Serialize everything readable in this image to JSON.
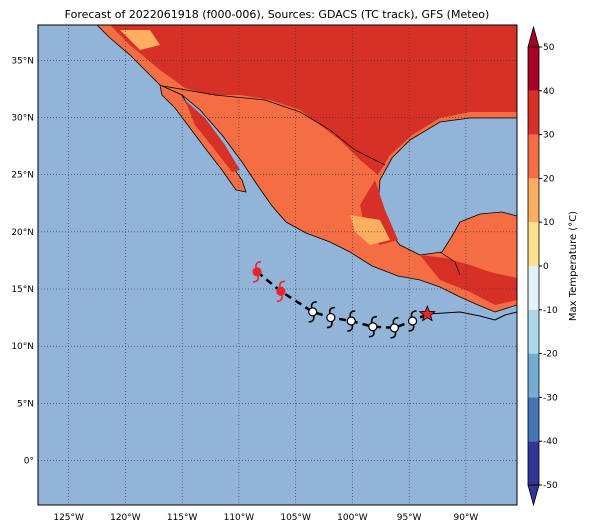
{
  "map": {
    "title": "Forecast of 2022061918 (f000-006), Sources: GDACS (TC track), GFS (Meteo)",
    "xlim": [
      -127.7,
      -85.5
    ],
    "ylim": [
      -3.9,
      38.1
    ],
    "xticks": [
      {
        "value": -125,
        "label": "125°W"
      },
      {
        "value": -120,
        "label": "120°W"
      },
      {
        "value": -115,
        "label": "115°W"
      },
      {
        "value": -110,
        "label": "110°W"
      },
      {
        "value": -105,
        "label": "105°W"
      },
      {
        "value": -100,
        "label": "100°W"
      },
      {
        "value": -95,
        "label": "95°W"
      },
      {
        "value": -90,
        "label": "90°W"
      }
    ],
    "yticks": [
      {
        "value": 0,
        "label": "0°"
      },
      {
        "value": 5,
        "label": "5°N"
      },
      {
        "value": 10,
        "label": "10°N"
      },
      {
        "value": 15,
        "label": "15°N"
      },
      {
        "value": 20,
        "label": "20°N"
      },
      {
        "value": 25,
        "label": "25°N"
      },
      {
        "value": 30,
        "label": "30°N"
      },
      {
        "value": 35,
        "label": "35°N"
      }
    ],
    "track": {
      "lon": [
        -108.4,
        -106.3,
        -103.5,
        -101.9,
        -100.1,
        -98.2,
        -96.3,
        -94.7
      ],
      "lat": [
        16.5,
        14.8,
        13.0,
        12.5,
        12.2,
        11.7,
        11.6,
        12.2
      ],
      "colors": [
        "#e8262a",
        "#e8262a",
        "#ffffff",
        "#ffffff",
        "#ffffff",
        "#ffffff",
        "#ffffff",
        "#ffffff"
      ]
    },
    "star": {
      "lon": -93.4,
      "lat": 12.8
    }
  },
  "colorbar": {
    "label": "Max Temperature (°C)",
    "ticks": [
      -50,
      -40,
      -30,
      -20,
      -10,
      0,
      10,
      20,
      30,
      40,
      50
    ],
    "colors": [
      "#313695",
      "#4575b4",
      "#74add1",
      "#abd9e9",
      "#e0f3f8",
      "#fee090",
      "#fdae61",
      "#f46d43",
      "#d73027",
      "#a50026"
    ]
  }
}
